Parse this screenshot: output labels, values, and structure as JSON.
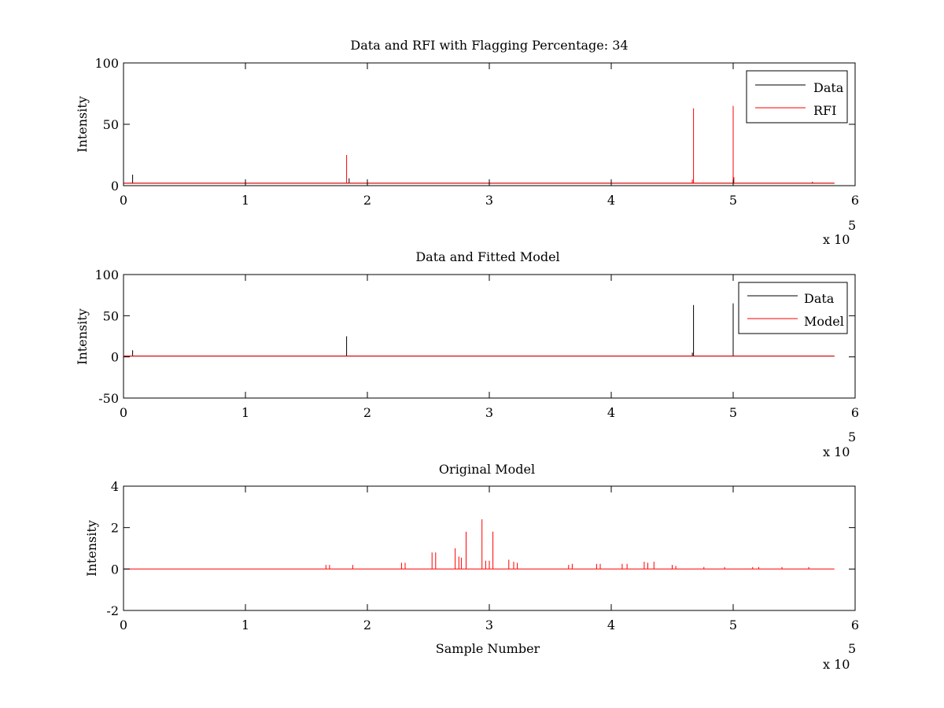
{
  "colors": {
    "data": "#000000",
    "rfi": "#ff0000",
    "axis": "#000000",
    "background": "#ffffff"
  },
  "chart_data": [
    {
      "type": "line",
      "title": "Data and RFI with Flagging Percentage: 34",
      "xlabel": "",
      "ylabel": "Intensity",
      "xlim": [
        0,
        600000
      ],
      "ylim": [
        0,
        100
      ],
      "xticks": [
        "0",
        "1",
        "2",
        "3",
        "4",
        "5",
        "6"
      ],
      "yticks": [
        "0",
        "50",
        "100"
      ],
      "x_multiplier": "x 10",
      "x_multiplier_exp": "5",
      "legend": "top-right",
      "series": [
        {
          "name": "Data",
          "color": "#000000",
          "baseline": 2,
          "spikes": [
            [
              7500,
              9
            ],
            [
              185000,
              6
            ],
            [
              565000,
              3
            ]
          ]
        },
        {
          "name": "RFI",
          "color": "#ff0000",
          "baseline": 2,
          "spikes": [
            [
              183000,
              25
            ],
            [
              466500,
              5
            ],
            [
              467500,
              63
            ],
            [
              500000,
              65
            ],
            [
              500600,
              7
            ]
          ]
        }
      ]
    },
    {
      "type": "line",
      "title": "Data and Fitted Model",
      "xlabel": "",
      "ylabel": "Intensity",
      "xlim": [
        0,
        600000
      ],
      "ylim": [
        -50,
        100
      ],
      "xticks": [
        "0",
        "1",
        "2",
        "3",
        "4",
        "5",
        "6"
      ],
      "yticks": [
        "-50",
        "0",
        "50",
        "100"
      ],
      "x_multiplier": "x 10",
      "x_multiplier_exp": "5",
      "legend": "top-right",
      "series": [
        {
          "name": "Data",
          "color": "#000000",
          "baseline": 1,
          "spikes": [
            [
              7500,
              8
            ],
            [
              183000,
              25
            ],
            [
              466500,
              5
            ],
            [
              467500,
              63
            ],
            [
              500000,
              65
            ]
          ]
        },
        {
          "name": "Model",
          "color": "#ff0000",
          "baseline": 1,
          "spikes": []
        }
      ]
    },
    {
      "type": "line",
      "title": "Original Model",
      "xlabel": "Sample Number",
      "ylabel": "Intensity",
      "xlim": [
        0,
        600000
      ],
      "ylim": [
        -2,
        4
      ],
      "xticks": [
        "0",
        "1",
        "2",
        "3",
        "4",
        "5",
        "6"
      ],
      "yticks": [
        "-2",
        "0",
        "2",
        "4"
      ],
      "x_multiplier": "x 10",
      "x_multiplier_exp": "5",
      "legend": "none",
      "series": [
        {
          "name": "",
          "color": "#ff0000",
          "baseline": 0,
          "spikes": [
            [
              253000,
              0.8
            ],
            [
              256000,
              0.8
            ],
            [
              272000,
              1.0
            ],
            [
              275000,
              0.6
            ],
            [
              277000,
              0.55
            ],
            [
              281000,
              1.8
            ],
            [
              294000,
              2.4
            ],
            [
              297000,
              0.4
            ],
            [
              300000,
              0.4
            ],
            [
              303000,
              1.8
            ],
            [
              316000,
              0.45
            ],
            [
              320000,
              0.35
            ],
            [
              323000,
              0.3
            ],
            [
              166000,
              0.2
            ],
            [
              169000,
              0.2
            ],
            [
              188000,
              0.2
            ],
            [
              228000,
              0.3
            ],
            [
              231000,
              0.3
            ],
            [
              365000,
              0.2
            ],
            [
              368000,
              0.25
            ],
            [
              388000,
              0.25
            ],
            [
              391000,
              0.25
            ],
            [
              409000,
              0.25
            ],
            [
              413000,
              0.25
            ],
            [
              427000,
              0.35
            ],
            [
              430000,
              0.3
            ],
            [
              435000,
              0.35
            ],
            [
              450000,
              0.2
            ],
            [
              453000,
              0.15
            ],
            [
              476000,
              0.1
            ],
            [
              493000,
              0.1
            ],
            [
              516000,
              0.1
            ],
            [
              521000,
              0.1
            ],
            [
              540000,
              0.1
            ],
            [
              562000,
              0.1
            ]
          ]
        }
      ]
    }
  ]
}
